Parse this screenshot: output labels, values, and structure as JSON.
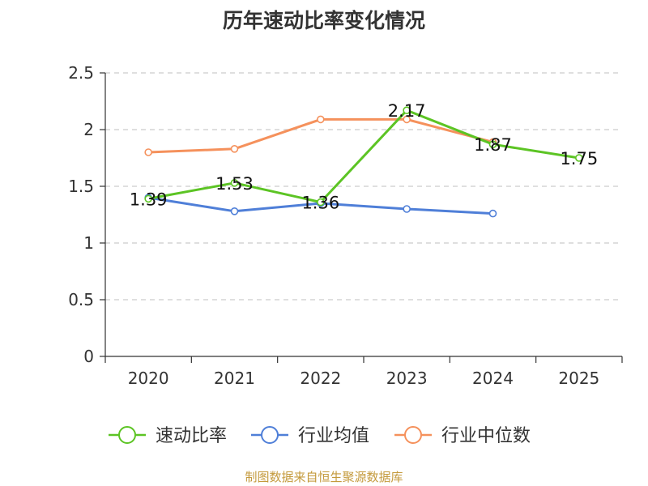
{
  "title": "历年速动比率变化情况",
  "source": "制图数据来自恒生聚源数据库",
  "chart_data": {
    "type": "line",
    "categories": [
      "2020",
      "2021",
      "2022",
      "2023",
      "2024",
      "2025"
    ],
    "ylim": [
      0,
      2.5
    ],
    "yticks": [
      "0",
      "0.5",
      "1",
      "1.5",
      "2",
      "2.5"
    ],
    "grid": true,
    "legend_position": "bottom",
    "series": [
      {
        "name": "速动比率",
        "color": "#5cc424",
        "values": [
          1.39,
          1.53,
          1.36,
          2.17,
          1.87,
          1.75
        ],
        "labels": [
          "1.39",
          "1.53",
          "1.36",
          "2.17",
          "1.87",
          "1.75"
        ]
      },
      {
        "name": "行业均值",
        "color": "#4f7fd8",
        "values": [
          1.4,
          1.28,
          1.35,
          1.3,
          1.26,
          null
        ]
      },
      {
        "name": "行业中位数",
        "color": "#f5915c",
        "values": [
          1.8,
          1.83,
          2.09,
          2.09,
          1.89,
          null
        ]
      }
    ]
  }
}
